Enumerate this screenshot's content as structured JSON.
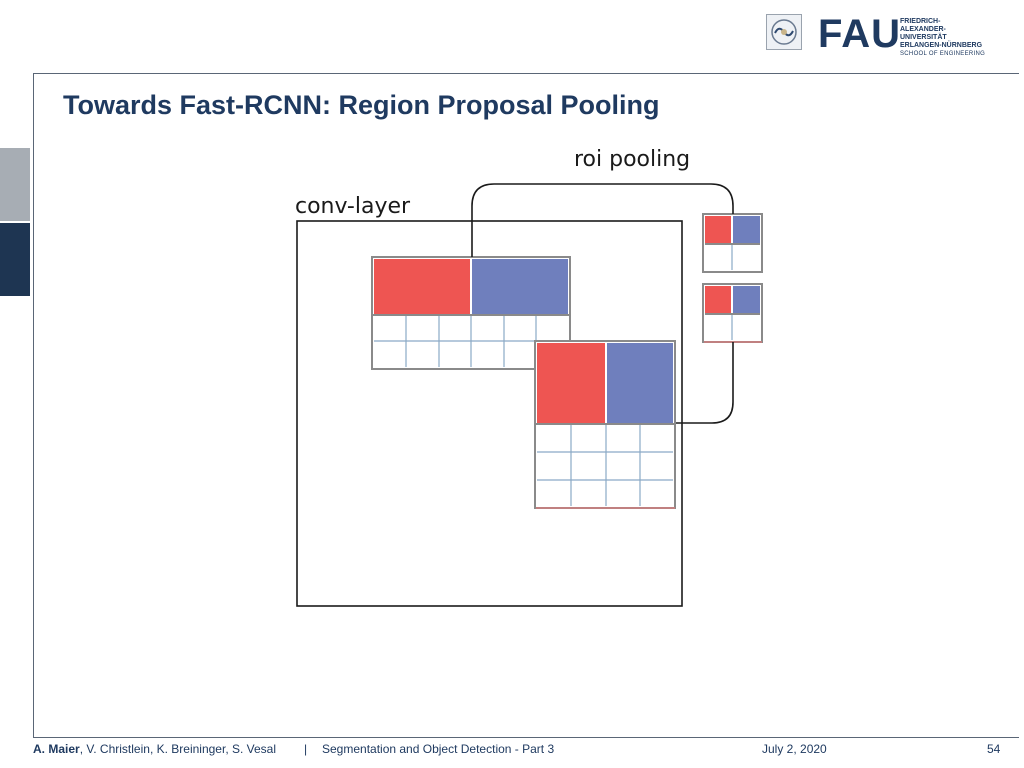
{
  "header": {
    "logo": {
      "wordmark": "FAU",
      "lines": [
        "FRIEDRICH-ALEXANDER-",
        "UNIVERSITÄT",
        "ERLANGEN-NÜRNBERG"
      ],
      "school": "SCHOOL OF ENGINEERING"
    }
  },
  "slide": {
    "title": "Towards Fast-RCNN: Region Proposal Pooling"
  },
  "diagram": {
    "conv_layer_label": "conv-layer",
    "roi_pooling_label": "roi pooling",
    "colors": {
      "red": "#ee5552",
      "blue": "#6f7fbd",
      "grid_line": "#8aa9c6",
      "box_border": "#8a8a8a",
      "bracket": "#1a1a1a"
    }
  },
  "footer": {
    "author_main": "A. Maier",
    "authors_rest": ", V. Christlein, K. Breininger, S. Vesal",
    "separator": "|",
    "lecture": "Segmentation and Object Detection - Part 3",
    "date": "July 2, 2020",
    "page": "54"
  }
}
